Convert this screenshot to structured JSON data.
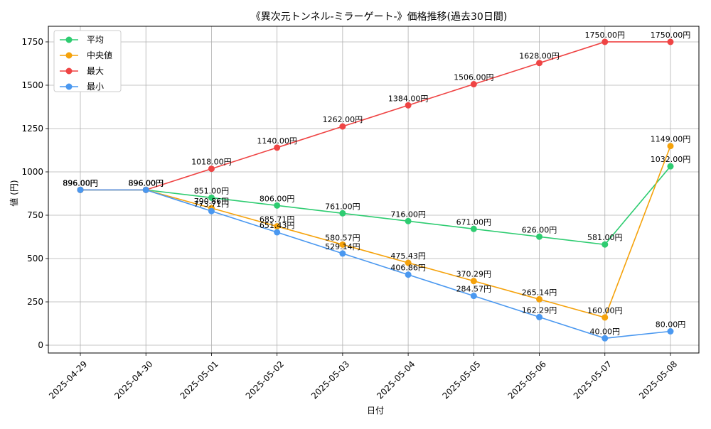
{
  "chart_data": {
    "type": "line",
    "title": "《異次元トンネル-ミラーゲート-》価格推移(過去30日間)",
    "xlabel": "日付",
    "ylabel": "値 (円)",
    "value_suffix": "円",
    "categories": [
      "2025-04-29",
      "2025-04-30",
      "2025-05-01",
      "2025-05-02",
      "2025-05-03",
      "2025-05-04",
      "2025-05-05",
      "2025-05-06",
      "2025-05-07",
      "2025-05-08"
    ],
    "ylim": [
      -45,
      1840
    ],
    "yticks": [
      0,
      250,
      500,
      750,
      1000,
      1250,
      1500,
      1750
    ],
    "grid": true,
    "legend_position": "top-left",
    "series": [
      {
        "name": "平均",
        "color": "#2ecc71",
        "values": [
          896,
          896,
          851,
          806,
          761,
          716,
          671,
          626,
          581,
          1032
        ],
        "labels": [
          "896.00円",
          "896.00円",
          "851.00円",
          "806.00円",
          "761.00円",
          "716.00円",
          "671.00円",
          "626.00円",
          "581.00円",
          "1032.00円"
        ]
      },
      {
        "name": "中央値",
        "color": "#f5a20b",
        "values": [
          896,
          896,
          790.86,
          685.71,
          580.57,
          475.43,
          370.29,
          265.14,
          160,
          1149
        ],
        "labels": [
          "896.00円",
          "896.00円",
          "790.86円",
          "685.71円",
          "580.57円",
          "475.43円",
          "370.29円",
          "265.14円",
          "160.00円",
          "1149.00円"
        ]
      },
      {
        "name": "最大",
        "color": "#ef4444",
        "values": [
          896,
          896,
          1018,
          1140,
          1262,
          1384,
          1506,
          1628,
          1750,
          1750
        ],
        "labels": [
          "896.00円",
          "896.00円",
          "1018.00円",
          "1140.00円",
          "1262.00円",
          "1384.00円",
          "1506.00円",
          "1628.00円",
          "1750.00円",
          "1750.00円"
        ]
      },
      {
        "name": "最小",
        "color": "#4a98f0",
        "values": [
          896,
          896,
          773.71,
          651.43,
          529.14,
          406.86,
          284.57,
          162.29,
          40,
          80
        ],
        "labels": [
          "896.00円",
          "896.00円",
          "773.71円",
          "651.43円",
          "529.14円",
          "406.86円",
          "284.57円",
          "162.29円",
          "40.00円",
          "80.00円"
        ]
      }
    ]
  }
}
